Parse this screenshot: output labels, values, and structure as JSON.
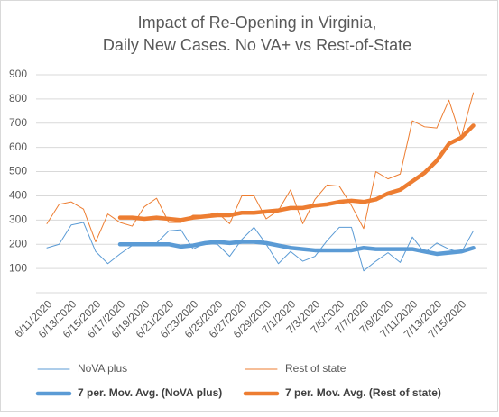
{
  "chart_data": {
    "type": "line",
    "title": "Impact of Re-Opening in Virginia,",
    "subtitle": "Daily New Cases. No VA+ vs Rest-of-State",
    "categories": [
      "6/11/2020",
      null,
      "6/13/2020",
      null,
      "6/15/2020",
      null,
      "6/17/2020",
      null,
      "6/19/2020",
      null,
      "6/21/2020",
      null,
      "6/23/2020",
      null,
      "6/25/2020",
      null,
      "6/27/2020",
      null,
      "6/29/2020",
      null,
      "7/1/2020",
      null,
      "7/3/2020",
      null,
      "7/5/2020",
      null,
      "7/7/2020",
      null,
      "7/9/2020",
      null,
      "7/11/2020",
      null,
      "7/13/2020",
      null,
      "7/15/2020",
      null
    ],
    "series": [
      {
        "name": "NoVA plus",
        "color": "#5b9bd5",
        "line_width": 1,
        "values": [
          185,
          200,
          280,
          290,
          170,
          120,
          160,
          195,
          200,
          205,
          255,
          260,
          180,
          205,
          200,
          150,
          220,
          270,
          200,
          120,
          170,
          130,
          150,
          215,
          270,
          270,
          90,
          130,
          165,
          125,
          230,
          165,
          205,
          180,
          165,
          255
        ]
      },
      {
        "name": "Rest of state",
        "color": "#ed7d31",
        "line_width": 1,
        "values": [
          285,
          365,
          375,
          345,
          210,
          325,
          290,
          275,
          355,
          390,
          290,
          290,
          320,
          320,
          330,
          285,
          400,
          400,
          305,
          340,
          425,
          285,
          385,
          445,
          440,
          360,
          265,
          500,
          470,
          490,
          710,
          685,
          680,
          795,
          640,
          825
        ]
      },
      {
        "name": "7 per. Mov. Avg. (NoVA plus)",
        "color": "#5b9bd5",
        "line_width": 4.5,
        "values": [
          null,
          null,
          null,
          null,
          null,
          null,
          200,
          200,
          200,
          200,
          200,
          190,
          195,
          205,
          210,
          205,
          210,
          210,
          205,
          195,
          185,
          180,
          175,
          175,
          175,
          175,
          185,
          180,
          180,
          180,
          180,
          170,
          160,
          165,
          170,
          185
        ]
      },
      {
        "name": "7 per. Mov. Avg. (Rest of state)",
        "color": "#ed7d31",
        "line_width": 4.5,
        "values": [
          null,
          null,
          null,
          null,
          null,
          null,
          310,
          310,
          305,
          310,
          305,
          300,
          310,
          315,
          320,
          320,
          330,
          330,
          335,
          340,
          350,
          350,
          360,
          365,
          375,
          380,
          375,
          385,
          410,
          425,
          460,
          495,
          545,
          615,
          640,
          690
        ]
      }
    ],
    "ylim": [
      0,
      900
    ],
    "yticks": [
      100,
      200,
      300,
      400,
      500,
      600,
      700,
      800,
      900
    ],
    "grid": true
  }
}
